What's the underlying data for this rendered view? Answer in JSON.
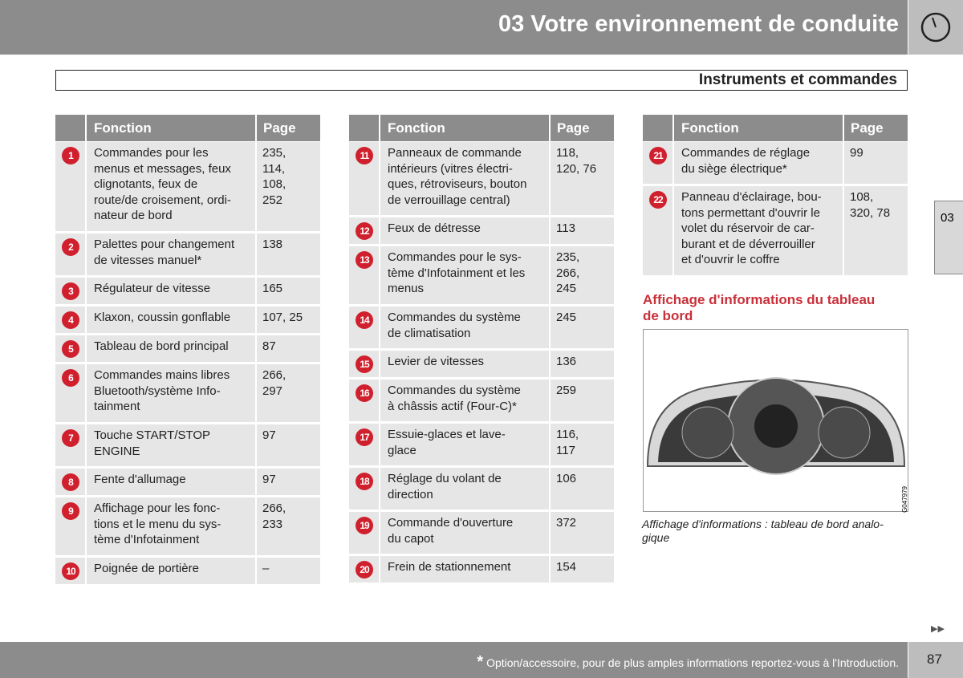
{
  "header": {
    "title": "03 Votre environnement de conduite",
    "section": "Instruments et commandes"
  },
  "tables": [
    {
      "columns": [
        "Fonction",
        "Page"
      ],
      "rows": [
        {
          "num": "1",
          "function": "Commandes pour les\nmenus et messages, feux\nclignotants, feux de\nroute/de croisement, ordi-\nnateur de bord",
          "page": "235,\n114,\n108,\n252"
        },
        {
          "num": "2",
          "function": "Palettes pour changement\nde vitesses manuel*",
          "page": "138"
        },
        {
          "num": "3",
          "function": "Régulateur de vitesse",
          "page": "165"
        },
        {
          "num": "4",
          "function": "Klaxon, coussin gonflable",
          "page": "107, 25"
        },
        {
          "num": "5",
          "function": "Tableau de bord principal",
          "page": "87"
        },
        {
          "num": "6",
          "function": "Commandes mains libres\nBluetooth/système Info-\ntainment",
          "page": "266,\n297"
        },
        {
          "num": "7",
          "function": "Touche START/STOP\nENGINE",
          "page": "97"
        },
        {
          "num": "8",
          "function": "Fente d'allumage",
          "page": "97"
        },
        {
          "num": "9",
          "function": "Affichage pour les fonc-\ntions et le menu du sys-\ntème d'Infotainment",
          "page": "266,\n233"
        },
        {
          "num": "10",
          "function": "Poignée de portière",
          "page": "–"
        }
      ]
    },
    {
      "columns": [
        "Fonction",
        "Page"
      ],
      "rows": [
        {
          "num": "11",
          "function": "Panneaux de commande\nintérieurs (vitres électri-\nques, rétroviseurs, bouton\nde verrouillage central)",
          "page": "118,\n120, 76"
        },
        {
          "num": "12",
          "function": "Feux de détresse",
          "page": "113"
        },
        {
          "num": "13",
          "function": "Commandes pour le sys-\ntème d'Infotainment et les\nmenus",
          "page": "235,\n266,\n245"
        },
        {
          "num": "14",
          "function": "Commandes du système\nde climatisation",
          "page": "245"
        },
        {
          "num": "15",
          "function": "Levier de vitesses",
          "page": "136"
        },
        {
          "num": "16",
          "function": "Commandes du système\nà châssis actif (Four-C)*",
          "page": "259"
        },
        {
          "num": "17",
          "function": "Essuie-glaces et lave-\nglace",
          "page": "116,\n117"
        },
        {
          "num": "18",
          "function": "Réglage du volant de\ndirection",
          "page": "106"
        },
        {
          "num": "19",
          "function": "Commande d'ouverture\ndu capot",
          "page": "372"
        },
        {
          "num": "20",
          "function": "Frein de stationnement",
          "page": "154"
        }
      ]
    },
    {
      "columns": [
        "Fonction",
        "Page"
      ],
      "rows": [
        {
          "num": "21",
          "function": "Commandes de réglage\ndu siège électrique*",
          "page": "99"
        },
        {
          "num": "22",
          "function": "Panneau d'éclairage, bou-\ntons permettant d'ouvrir le\nvolet du réservoir de car-\nburant et de déverrouiller\net d'ouvrir le coffre",
          "page": "108,\n320, 78"
        }
      ]
    }
  ],
  "figure": {
    "heading": "Affichage d'informations du tableau\nde bord",
    "code": "G047979",
    "caption": "Affichage d'informations : tableau de bord analo-\ngique"
  },
  "side_tab": "03",
  "footer": {
    "note": "Option/accessoire, pour de plus amples informations reportez-vous à l'Introduction.",
    "star": "*",
    "page": "87"
  }
}
